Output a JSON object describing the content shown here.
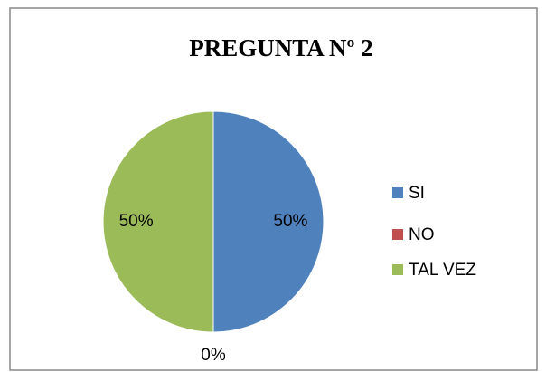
{
  "chart_data": {
    "type": "pie",
    "title": "PREGUNTA Nº 2",
    "categories": [
      "SI",
      "NO",
      "TAL VEZ"
    ],
    "values": [
      50,
      0,
      50
    ],
    "value_labels": [
      "50%",
      "0%",
      "50%"
    ],
    "colors": [
      "#4f81bd",
      "#c0504d",
      "#9bbb59"
    ],
    "legend": "right"
  }
}
